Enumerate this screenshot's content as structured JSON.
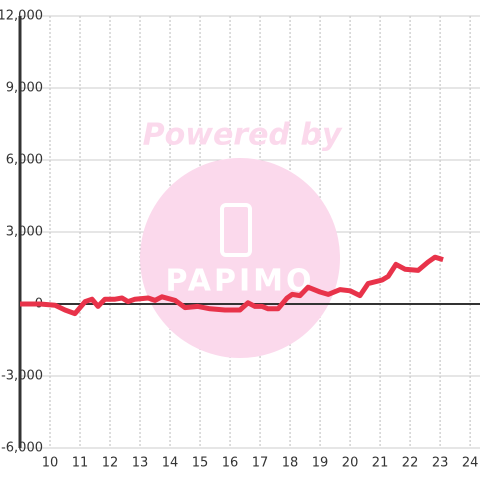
{
  "chart_data": {
    "type": "line",
    "watermark": {
      "text": "Powered by",
      "logo": "PAPIMO"
    },
    "x": [
      9.0,
      9.67,
      10.17,
      10.5,
      10.83,
      11.17,
      11.4,
      11.6,
      11.83,
      12.17,
      12.4,
      12.6,
      12.83,
      13.27,
      13.5,
      13.73,
      14.17,
      14.5,
      14.93,
      15.33,
      15.83,
      16.33,
      16.6,
      16.83,
      17.07,
      17.27,
      17.6,
      17.9,
      18.07,
      18.33,
      18.6,
      19.0,
      19.27,
      19.67,
      20.0,
      20.33,
      20.6,
      21.07,
      21.27,
      21.53,
      21.83,
      22.27,
      22.6,
      22.83,
      23.1
    ],
    "values": [
      0,
      0,
      -50,
      -250,
      -400,
      100,
      200,
      -100,
      200,
      200,
      250,
      100,
      200,
      250,
      150,
      300,
      150,
      -150,
      -100,
      -200,
      -250,
      -250,
      50,
      -100,
      -100,
      -200,
      -200,
      250,
      400,
      350,
      700,
      500,
      400,
      600,
      550,
      350,
      850,
      1000,
      1150,
      1650,
      1450,
      1400,
      1750,
      1950,
      1850
    ],
    "color": "#e8334a",
    "xlim": [
      9,
      24.33
    ],
    "xticks": [
      10,
      11,
      12,
      13,
      14,
      15,
      16,
      17,
      18,
      19,
      20,
      21,
      22,
      23,
      24
    ],
    "ylim": [
      -6000,
      12000
    ],
    "yticks": [
      {
        "value": -6000,
        "label": "-6,000"
      },
      {
        "value": -3000,
        "label": "-3,000"
      },
      0,
      {
        "value": 3000,
        "label": "3,000"
      },
      {
        "value": 6000,
        "label": "6,000"
      },
      {
        "value": 9000,
        "label": "9,000"
      },
      {
        "value": 12000,
        "label": "12,000"
      }
    ],
    "grid": true
  }
}
